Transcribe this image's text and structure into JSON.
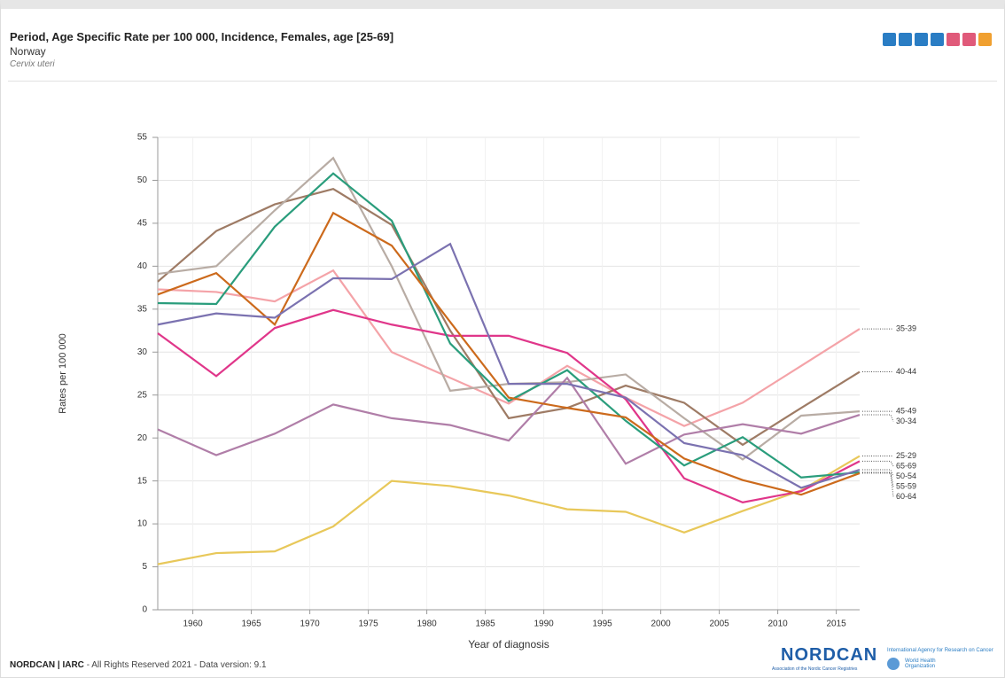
{
  "chart_data": {
    "type": "line",
    "title": "Period, Age Specific Rate per 100 000, Incidence, Females, age [25-69]",
    "subtitle": "Norway",
    "site": "Cervix uteri",
    "x_label": "Year of diagnosis",
    "y_label": "Rates per 100 000",
    "x": [
      1957,
      1962,
      1967,
      1972,
      1977,
      1982,
      1987,
      1992,
      1997,
      2002,
      2007,
      2012,
      2017
    ],
    "xlim": [
      1957,
      2017
    ],
    "xticks": [
      1960,
      1965,
      1970,
      1975,
      1980,
      1985,
      1990,
      1995,
      2000,
      2005,
      2010,
      2015
    ],
    "ylim": [
      0,
      55
    ],
    "yticks": [
      0,
      5,
      10,
      15,
      20,
      25,
      30,
      35,
      40,
      45,
      50,
      55
    ],
    "grid": true,
    "series": [
      {
        "name": "35-39",
        "color": "#f4a3a8",
        "values": [
          37.3,
          37.0,
          35.9,
          39.5,
          30.0,
          27.0,
          24.0,
          28.4,
          24.7,
          21.4,
          24.1,
          28.4,
          32.7
        ]
      },
      {
        "name": "40-44",
        "color": "#9e7b65",
        "values": [
          38.2,
          44.1,
          47.2,
          49.0,
          44.8,
          32.5,
          22.3,
          23.5,
          26.1,
          24.1,
          19.2,
          23.5,
          27.7
        ]
      },
      {
        "name": "45-49",
        "color": "#b8aca4",
        "values": [
          39.1,
          40.0,
          46.5,
          52.6,
          40.0,
          25.5,
          26.3,
          26.5,
          27.4,
          22.3,
          17.5,
          22.6,
          23.1
        ]
      },
      {
        "name": "30-34",
        "color": "#b07ea8",
        "values": [
          21.0,
          18.0,
          20.5,
          23.9,
          22.3,
          21.5,
          19.7,
          27.0,
          17.0,
          20.4,
          21.6,
          20.5,
          22.7
        ]
      },
      {
        "name": "25-29",
        "color": "#e8c85a",
        "values": [
          5.3,
          6.6,
          6.8,
          9.7,
          15.0,
          14.4,
          13.3,
          11.7,
          11.4,
          9.0,
          11.5,
          13.9,
          17.9
        ]
      },
      {
        "name": "65-69",
        "color": "#e0368a",
        "values": [
          32.2,
          27.2,
          32.8,
          34.9,
          33.2,
          31.9,
          31.9,
          29.9,
          24.5,
          15.3,
          12.5,
          13.8,
          17.3
        ]
      },
      {
        "name": "55-59",
        "color": "#2a9d7c",
        "values": [
          35.7,
          35.6,
          44.6,
          50.8,
          45.3,
          31.0,
          24.3,
          27.9,
          22.0,
          16.8,
          20.1,
          15.4,
          16.0
        ]
      },
      {
        "name": "60-64",
        "color": "#cc6a1c",
        "values": [
          36.7,
          39.2,
          33.2,
          46.2,
          42.4,
          33.5,
          24.7,
          23.5,
          22.4,
          17.6,
          15.1,
          13.4,
          15.9
        ]
      },
      {
        "name": "50-54",
        "color": "#7b72b0",
        "values": [
          33.2,
          34.5,
          34.0,
          38.6,
          38.5,
          42.6,
          26.3,
          26.3,
          24.7,
          19.4,
          18.0,
          14.2,
          16.3
        ]
      }
    ]
  },
  "footer": {
    "brand": "NORDCAN | IARC",
    "text": "- All Rights Reserved 2021 - Data version: 9.1",
    "logo": "NORDCAN",
    "logo_tagline": "Association of the Nordic Cancer Registries",
    "iarc": "International Agency for Research on Cancer",
    "who": "World Health Organization"
  }
}
